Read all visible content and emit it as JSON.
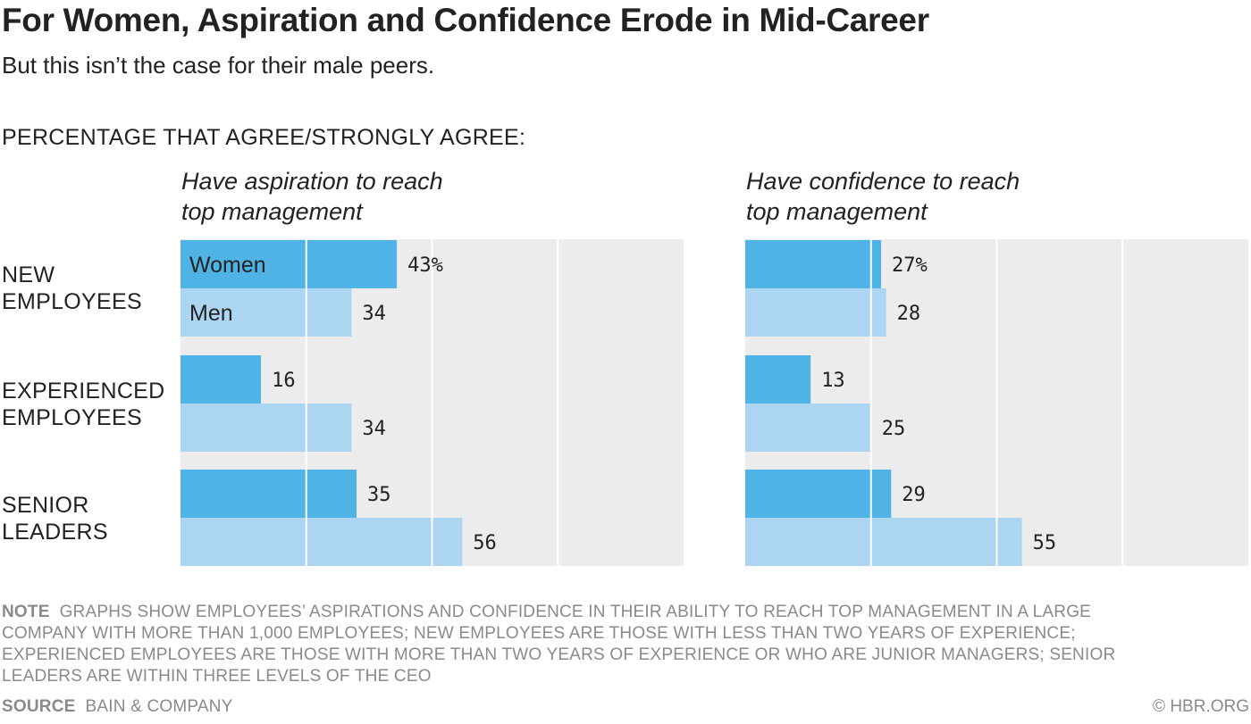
{
  "chart_data": {
    "type": "bar",
    "title": "For Women, Aspiration and Confidence Erode in Mid-Career",
    "subtitle": "But this isn’t the case for their male peers.",
    "measure_label": "PERCENTAGE THAT AGREE/STRONGLY AGREE:",
    "categories": [
      {
        "line1": "NEW",
        "line2": "EMPLOYEES"
      },
      {
        "line1": "EXPERIENCED",
        "line2": "EMPLOYEES"
      },
      {
        "line1": "SENIOR",
        "line2": "LEADERS"
      }
    ],
    "legend": [
      "Women",
      "Men"
    ],
    "xlim": [
      0,
      100
    ],
    "grid": true,
    "panels": [
      {
        "title_line1": "Have aspiration to reach",
        "title_line2": "top management",
        "series": [
          {
            "name": "Women",
            "values": [
              43,
              16,
              35
            ]
          },
          {
            "name": "Men",
            "values": [
              34,
              34,
              56
            ]
          }
        ],
        "value_labels": [
          [
            "43%",
            "16",
            "35"
          ],
          [
            "34",
            "34",
            "56"
          ]
        ]
      },
      {
        "title_line1": "Have confidence to reach",
        "title_line2": "top management",
        "series": [
          {
            "name": "Women",
            "values": [
              27,
              13,
              29
            ]
          },
          {
            "name": "Men",
            "values": [
              28,
              25,
              55
            ]
          }
        ],
        "value_labels": [
          [
            "27%",
            "13",
            "29"
          ],
          [
            "28",
            "25",
            "55"
          ]
        ]
      }
    ],
    "colors": {
      "women": "#4fb3e6",
      "men": "#acd5f2",
      "background": "#ececec",
      "grid": "#ffffff"
    }
  },
  "note_label": "NOTE",
  "note_text": "GRAPHS SHOW EMPLOYEES’ ASPIRATIONS AND CONFIDENCE IN THEIR ABILITY TO REACH TOP MANAGEMENT IN A LARGE COMPANY WITH MORE THAN 1,000 EMPLOYEES; NEW EMPLOYEES ARE THOSE WITH LESS THAN TWO YEARS OF EXPERIENCE; EXPERIENCED EMPLOYEES ARE THOSE WITH MORE THAN TWO YEARS OF EXPERIENCE OR WHO ARE JUNIOR MANAGERS; SENIOR LEADERS ARE WITHIN THREE LEVELS OF THE CEO",
  "source_label": "SOURCE",
  "source_text": "BAIN & COMPANY",
  "credit": "© HBR.ORG"
}
